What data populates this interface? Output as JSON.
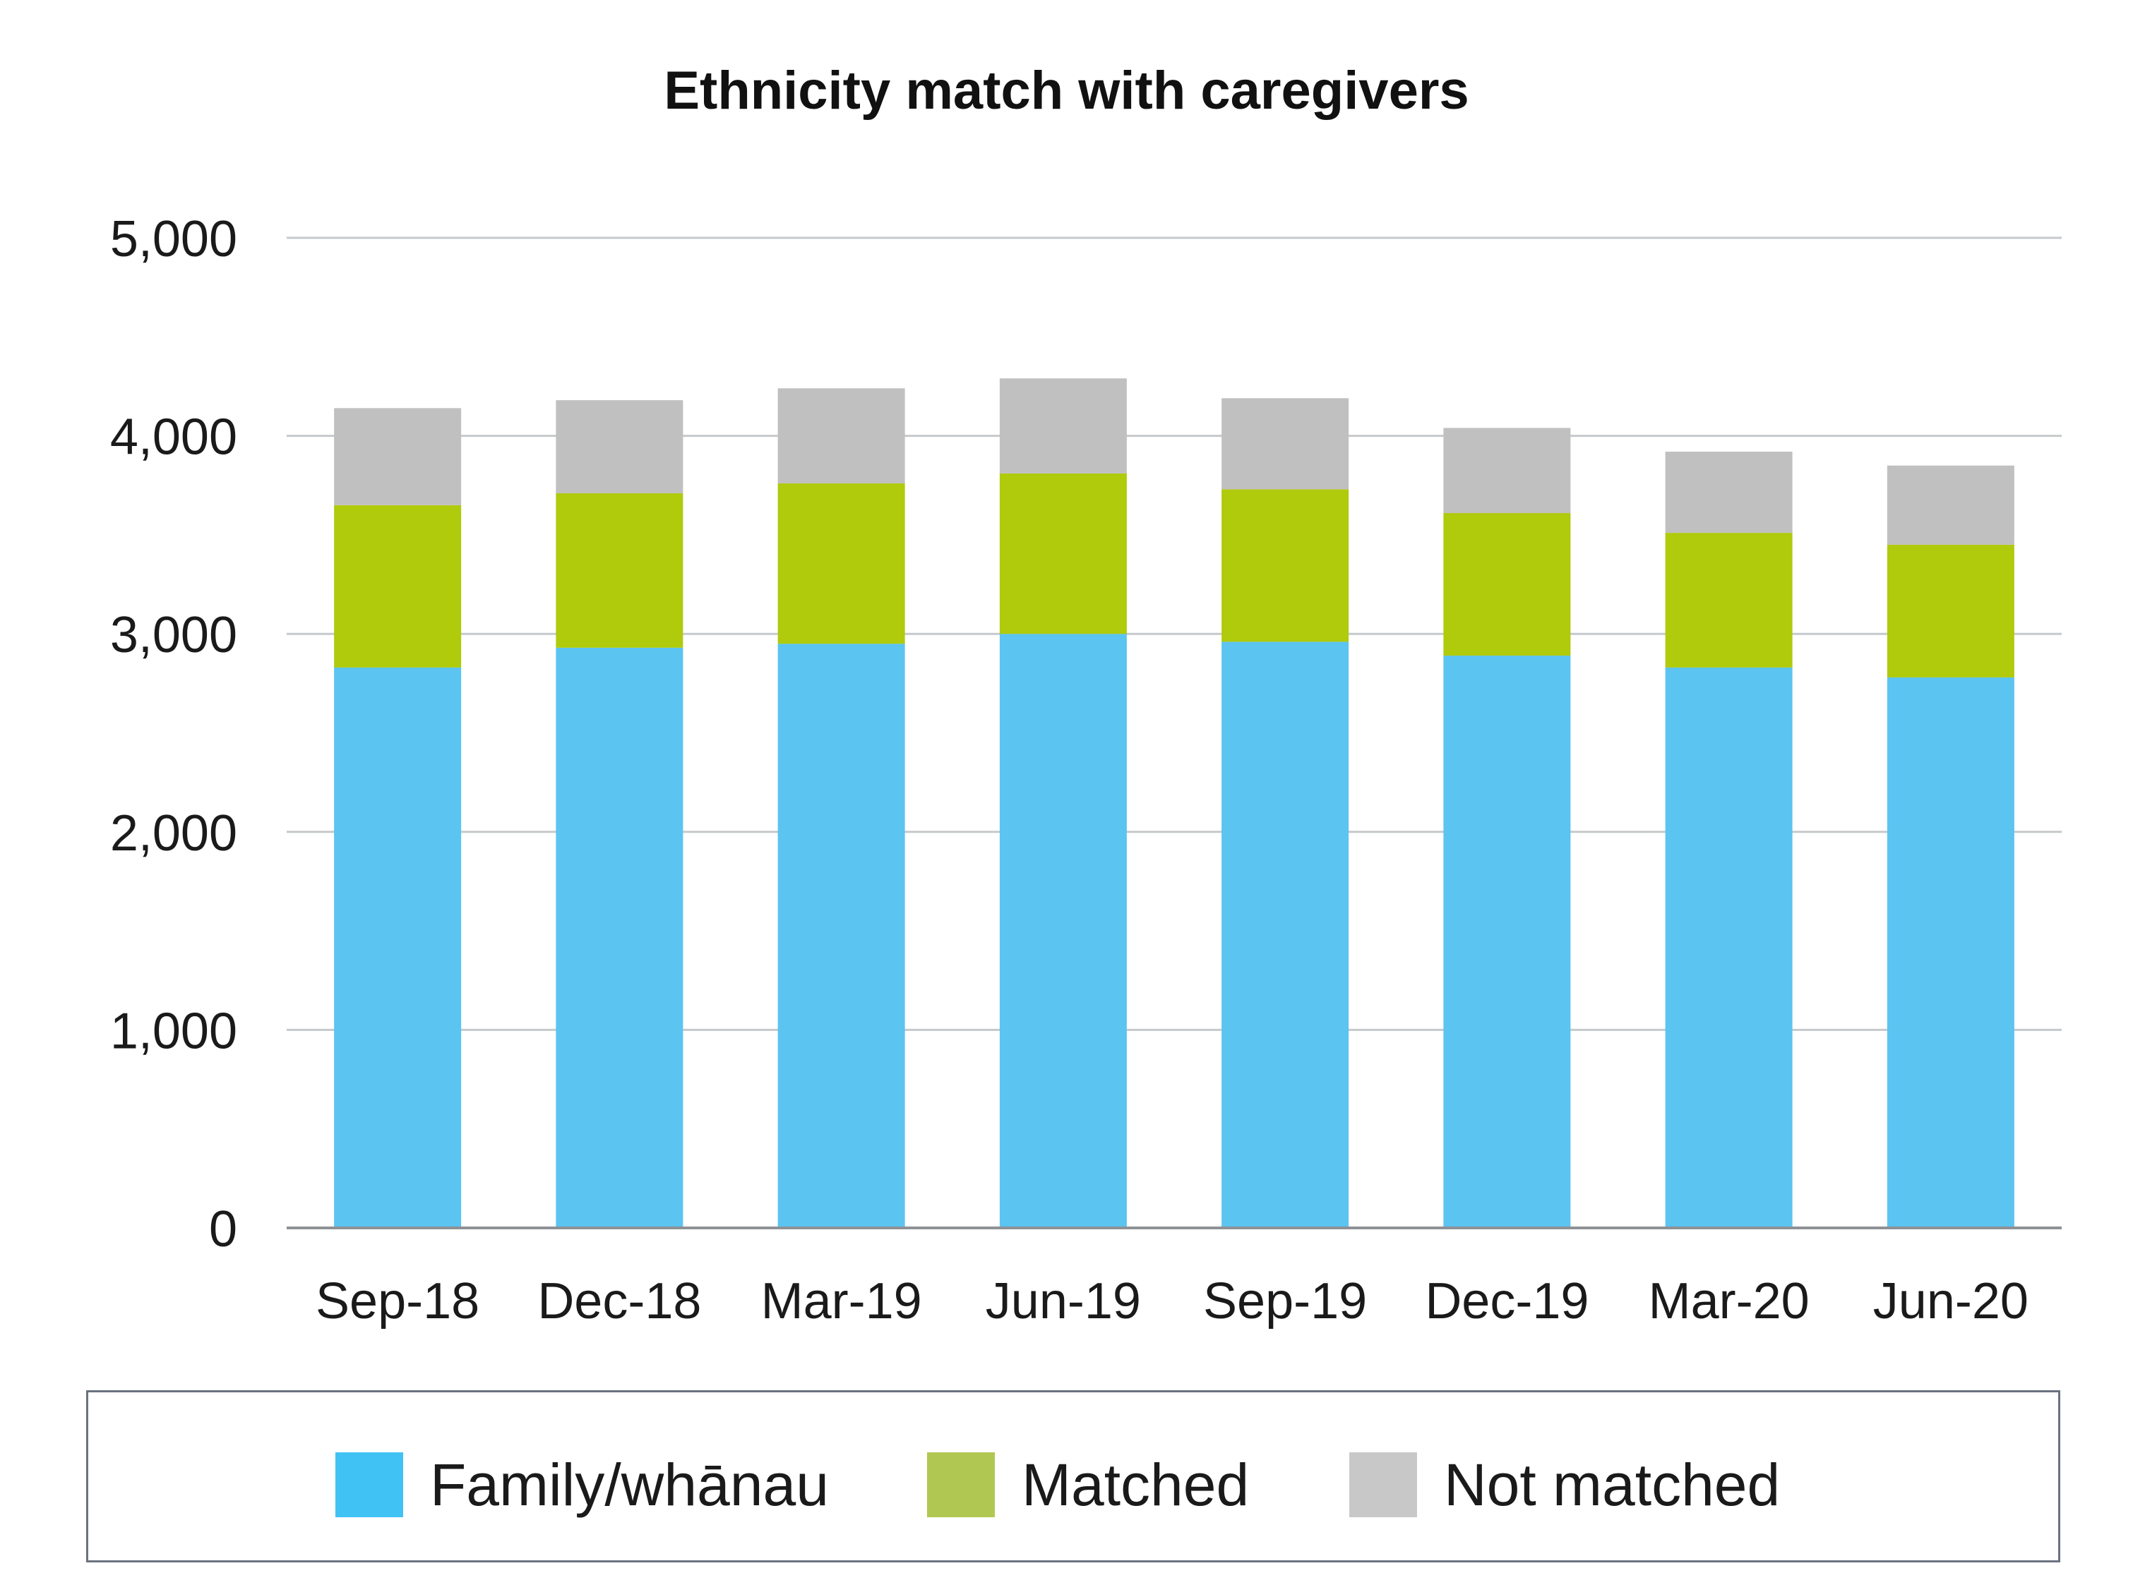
{
  "chart_data": {
    "type": "bar",
    "stacked": true,
    "title": "Ethnicity match with caregivers",
    "xlabel": "",
    "ylabel": "",
    "ylim": [
      0,
      5000
    ],
    "yticks": [
      "0",
      "1,000",
      "2,000",
      "3,000",
      "4,000",
      "5,000"
    ],
    "categories": [
      "Sep-18",
      "Dec-18",
      "Mar-19",
      "Jun-19",
      "Sep-19",
      "Dec-19",
      "Mar-20",
      "Jun-20"
    ],
    "series": [
      {
        "name": "Family/whānau",
        "color": "#5bc4f1",
        "legend_color": "#41c2f4",
        "values": [
          2830,
          2930,
          2950,
          3000,
          2960,
          2890,
          2830,
          2780
        ]
      },
      {
        "name": "Matched",
        "color": "#b0ca0c",
        "legend_color": "#b0c851",
        "values": [
          820,
          780,
          810,
          810,
          770,
          720,
          680,
          670
        ]
      },
      {
        "name": "Not matched",
        "color": "#c0c0c0",
        "legend_color": "#c8c8c8",
        "values": [
          490,
          470,
          480,
          480,
          460,
          430,
          410,
          400
        ]
      }
    ],
    "grid": true,
    "legend_position": "bottom"
  }
}
